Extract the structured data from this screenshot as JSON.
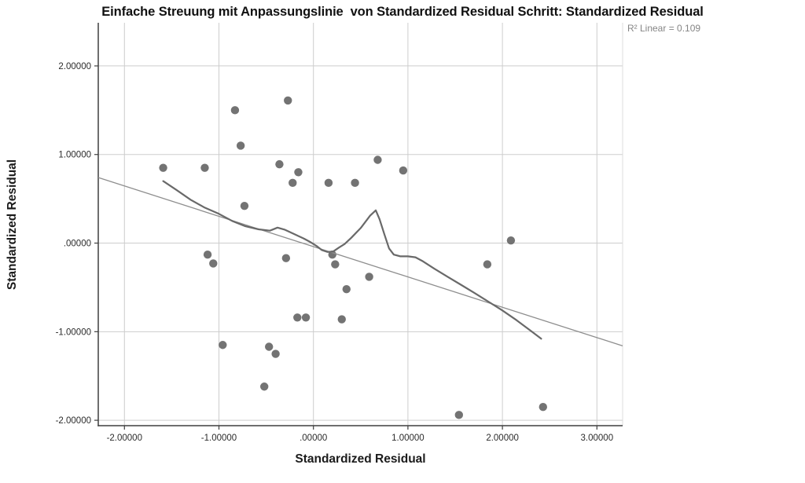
{
  "title": "Einfache Streuung mit Anpassungslinie  von Standardized Residual Schritt: Standardized Residual",
  "annotation": "R² Linear = 0.109",
  "chart_data": {
    "type": "scatter",
    "title": "Einfache Streuung mit Anpassungslinie  von Standardized Residual Schritt: Standardized Residual",
    "xlabel": "Standardized Residual",
    "ylabel": "Standardized Residual",
    "r_squared_text": "R² Linear = 0.109",
    "r_squared": 0.109,
    "grid": true,
    "legend_position": "none",
    "xlim": [
      -2.277,
      3.272
    ],
    "ylim": [
      -2.061,
      2.487
    ],
    "x_tick_values": [
      -2,
      -1,
      0,
      1,
      2,
      3
    ],
    "x_tick_labels": [
      "-2.00000",
      "-1.00000",
      ".00000",
      "1.00000",
      "2.00000",
      "3.00000"
    ],
    "y_tick_values": [
      2,
      1,
      0,
      -1,
      -2
    ],
    "y_tick_labels": [
      "2.00000",
      "1.00000",
      ".00000",
      "-1.00000",
      "-2.00000"
    ],
    "points": [
      [
        -1.59,
        0.85
      ],
      [
        -1.15,
        0.85
      ],
      [
        -1.12,
        -0.13
      ],
      [
        -1.06,
        -0.23
      ],
      [
        -0.96,
        -1.15
      ],
      [
        -0.83,
        1.5
      ],
      [
        -0.77,
        1.1
      ],
      [
        -0.73,
        0.42
      ],
      [
        -0.52,
        -1.62
      ],
      [
        -0.47,
        -1.17
      ],
      [
        -0.4,
        -1.25
      ],
      [
        -0.36,
        0.89
      ],
      [
        -0.29,
        -0.17
      ],
      [
        -0.27,
        1.61
      ],
      [
        -0.22,
        0.68
      ],
      [
        -0.17,
        -0.84
      ],
      [
        -0.16,
        0.8
      ],
      [
        -0.08,
        -0.84
      ],
      [
        0.16,
        0.68
      ],
      [
        0.2,
        -0.13
      ],
      [
        0.23,
        -0.24
      ],
      [
        0.3,
        -0.86
      ],
      [
        0.35,
        -0.52
      ],
      [
        0.44,
        0.68
      ],
      [
        0.59,
        -0.38
      ],
      [
        0.68,
        0.94
      ],
      [
        0.95,
        0.82
      ],
      [
        1.54,
        -1.94
      ],
      [
        1.84,
        -0.24
      ],
      [
        2.09,
        0.03
      ],
      [
        2.43,
        -1.85
      ]
    ],
    "fit_line": {
      "kind": "linear",
      "x1": -2.277,
      "y1": 0.74,
      "x2": 3.272,
      "y2": -1.16
    },
    "loess_line": [
      [
        -1.59,
        0.7
      ],
      [
        -1.45,
        0.6
      ],
      [
        -1.3,
        0.49
      ],
      [
        -1.15,
        0.4
      ],
      [
        -1.0,
        0.33
      ],
      [
        -0.86,
        0.25
      ],
      [
        -0.72,
        0.19
      ],
      [
        -0.58,
        0.155
      ],
      [
        -0.46,
        0.14
      ],
      [
        -0.38,
        0.175
      ],
      [
        -0.3,
        0.15
      ],
      [
        -0.2,
        0.1
      ],
      [
        -0.1,
        0.05
      ],
      [
        -0.03,
        0.01
      ],
      [
        0.03,
        -0.03
      ],
      [
        0.09,
        -0.08
      ],
      [
        0.15,
        -0.1
      ],
      [
        0.21,
        -0.095
      ],
      [
        0.27,
        -0.05
      ],
      [
        0.33,
        -0.01
      ],
      [
        0.4,
        0.06
      ],
      [
        0.5,
        0.17
      ],
      [
        0.6,
        0.31
      ],
      [
        0.66,
        0.37
      ],
      [
        0.7,
        0.27
      ],
      [
        0.75,
        0.1
      ],
      [
        0.8,
        -0.06
      ],
      [
        0.85,
        -0.13
      ],
      [
        0.92,
        -0.15
      ],
      [
        1.0,
        -0.15
      ],
      [
        1.08,
        -0.16
      ],
      [
        1.15,
        -0.2
      ],
      [
        1.28,
        -0.29
      ],
      [
        1.42,
        -0.38
      ],
      [
        1.56,
        -0.47
      ],
      [
        1.7,
        -0.56
      ],
      [
        1.85,
        -0.66
      ],
      [
        2.0,
        -0.76
      ],
      [
        2.15,
        -0.87
      ],
      [
        2.3,
        -0.99
      ],
      [
        2.41,
        -1.08
      ]
    ],
    "colors": {
      "point": "#6b6b6b",
      "loess_line": "#696969",
      "fit_line": "#8e8e8e",
      "gridline": "#cdcdcd",
      "axis": "#3f3f3f",
      "tick_label": "#2b2b2b",
      "title": "#111111",
      "annotation": "#858585",
      "background": "#ffffff"
    }
  }
}
